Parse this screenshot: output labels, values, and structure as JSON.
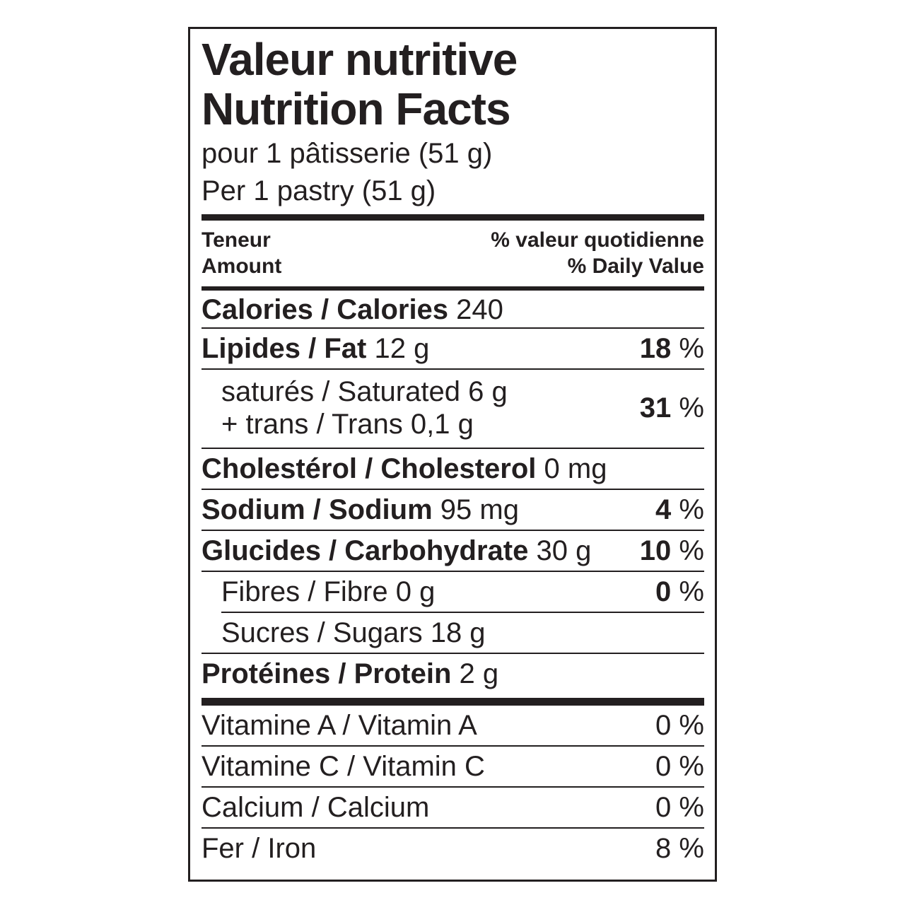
{
  "colors": {
    "ink": "#231f20",
    "background": "#ffffff"
  },
  "label": {
    "title_fr": "Valeur nutritive",
    "title_en": "Nutrition Facts",
    "serving_fr": "pour 1 pâtisserie (51 g)",
    "serving_en": "Per 1 pastry (51 g)",
    "header": {
      "amount_fr": "Teneur",
      "amount_en": "Amount",
      "dv_fr": "% valeur quotidienne",
      "dv_en": "% Daily Value"
    },
    "calories": {
      "name": "Calories / Calories",
      "value": "240"
    },
    "nutrients": [
      {
        "name": "Lipides / Fat",
        "value": "12 g",
        "dv": "18",
        "unit": "%"
      },
      {
        "line1": "saturés / Saturated 6 g",
        "line2": "+ trans / Trans 0,1 g",
        "dv": "31",
        "unit": "%"
      },
      {
        "name": "Cholestérol / Cholesterol",
        "value": "0 mg"
      },
      {
        "name": "Sodium / Sodium",
        "value": "95 mg",
        "dv": "4",
        "unit": "%"
      },
      {
        "name": "Glucides / Carbohydrate",
        "value": "30 g",
        "dv": "10",
        "unit": "%"
      },
      {
        "name": "Fibres / Fibre",
        "value": "0 g",
        "dv": "0",
        "unit": "%"
      },
      {
        "name": "Sucres / Sugars",
        "value": "18 g"
      },
      {
        "name": "Protéines / Protein",
        "value": "2 g"
      }
    ],
    "micronutrients": [
      {
        "name": "Vitamine A / Vitamin A",
        "dv": "0",
        "unit": "%"
      },
      {
        "name": "Vitamine C / Vitamin C",
        "dv": "0",
        "unit": "%"
      },
      {
        "name": "Calcium / Calcium",
        "dv": "0",
        "unit": "%"
      },
      {
        "name": "Fer / Iron",
        "dv": "8",
        "unit": "%"
      }
    ]
  }
}
